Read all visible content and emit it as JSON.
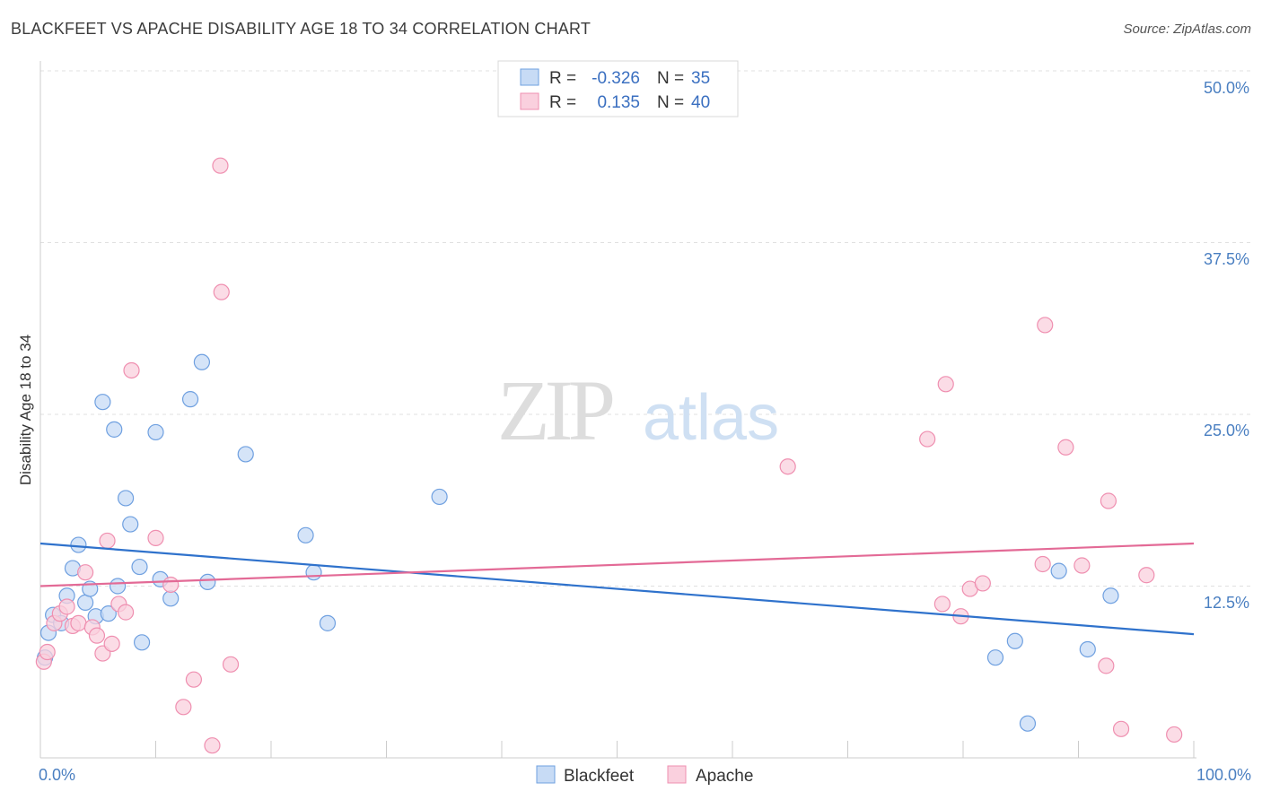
{
  "title": "BLACKFEET VS APACHE DISABILITY AGE 18 TO 34 CORRELATION CHART",
  "source": "Source: ZipAtlas.com",
  "watermark": {
    "zip": "ZIP",
    "atlas": "atlas"
  },
  "colors": {
    "blackfeet": "#6fa0e0",
    "blackfeet_fill": "#c7dbf5",
    "blackfeet_line": "#2f72cc",
    "apache": "#ef8fb0",
    "apache_fill": "#fad0de",
    "apache_line": "#e36a96",
    "tick_text": "#4a7fc1",
    "grid": "#e0e0e0"
  },
  "legend": {
    "rows": [
      {
        "r_label": "R =",
        "r_value": "-0.326",
        "n_label": "N =",
        "n_value": "35"
      },
      {
        "r_label": "R =",
        "r_value": "0.135",
        "n_label": "N =",
        "n_value": "40"
      }
    ]
  },
  "bottom_legend": [
    "Blackfeet",
    "Apache"
  ],
  "chart_data": {
    "type": "scatter",
    "title": "BLACKFEET VS APACHE DISABILITY AGE 18 TO 34 CORRELATION CHART",
    "xlabel": "",
    "ylabel": "Disability Age 18 to 34",
    "xlim": [
      0,
      100
    ],
    "ylim": [
      0,
      50
    ],
    "x_tick_labels": [
      "0.0%",
      "100.0%"
    ],
    "y_ticks": [
      12.5,
      25.0,
      37.5,
      50.0
    ],
    "y_tick_labels": [
      "12.5%",
      "25.0%",
      "37.5%",
      "50.0%"
    ],
    "grid": true,
    "series": [
      {
        "name": "Blackfeet",
        "r": -0.326,
        "n": 35,
        "trend": {
          "x": [
            0,
            100
          ],
          "y": [
            15.6,
            9.0
          ]
        },
        "points": [
          {
            "x": 0.4,
            "y": 7.3
          },
          {
            "x": 0.7,
            "y": 9.1
          },
          {
            "x": 1.1,
            "y": 10.4
          },
          {
            "x": 1.8,
            "y": 9.8
          },
          {
            "x": 2.3,
            "y": 11.8
          },
          {
            "x": 2.8,
            "y": 13.8
          },
          {
            "x": 3.3,
            "y": 15.5
          },
          {
            "x": 3.9,
            "y": 11.3
          },
          {
            "x": 4.3,
            "y": 12.3
          },
          {
            "x": 4.8,
            "y": 10.3
          },
          {
            "x": 5.4,
            "y": 25.9
          },
          {
            "x": 5.9,
            "y": 10.5
          },
          {
            "x": 6.4,
            "y": 23.9
          },
          {
            "x": 6.7,
            "y": 12.5
          },
          {
            "x": 7.4,
            "y": 18.9
          },
          {
            "x": 7.8,
            "y": 17.0
          },
          {
            "x": 8.6,
            "y": 13.9
          },
          {
            "x": 8.8,
            "y": 8.4
          },
          {
            "x": 10.0,
            "y": 23.7
          },
          {
            "x": 10.4,
            "y": 13.0
          },
          {
            "x": 11.3,
            "y": 11.6
          },
          {
            "x": 13.0,
            "y": 26.1
          },
          {
            "x": 14.0,
            "y": 28.8
          },
          {
            "x": 14.5,
            "y": 12.8
          },
          {
            "x": 17.8,
            "y": 22.1
          },
          {
            "x": 23.0,
            "y": 16.2
          },
          {
            "x": 23.7,
            "y": 13.5
          },
          {
            "x": 24.9,
            "y": 9.8
          },
          {
            "x": 34.6,
            "y": 19.0
          },
          {
            "x": 82.8,
            "y": 7.3
          },
          {
            "x": 84.5,
            "y": 8.5
          },
          {
            "x": 85.6,
            "y": 2.5
          },
          {
            "x": 88.3,
            "y": 13.6
          },
          {
            "x": 90.8,
            "y": 7.9
          },
          {
            "x": 92.8,
            "y": 11.8
          }
        ]
      },
      {
        "name": "Apache",
        "r": 0.135,
        "n": 40,
        "trend": {
          "x": [
            0,
            100
          ],
          "y": [
            12.5,
            15.6
          ]
        },
        "points": [
          {
            "x": 0.3,
            "y": 7.0
          },
          {
            "x": 0.6,
            "y": 7.7
          },
          {
            "x": 1.2,
            "y": 9.8
          },
          {
            "x": 1.7,
            "y": 10.5
          },
          {
            "x": 2.3,
            "y": 11.0
          },
          {
            "x": 2.8,
            "y": 9.6
          },
          {
            "x": 3.3,
            "y": 9.8
          },
          {
            "x": 3.9,
            "y": 13.5
          },
          {
            "x": 4.5,
            "y": 9.5
          },
          {
            "x": 4.9,
            "y": 8.9
          },
          {
            "x": 5.4,
            "y": 7.6
          },
          {
            "x": 5.8,
            "y": 15.8
          },
          {
            "x": 6.2,
            "y": 8.3
          },
          {
            "x": 6.8,
            "y": 11.2
          },
          {
            "x": 7.4,
            "y": 10.6
          },
          {
            "x": 7.9,
            "y": 28.2
          },
          {
            "x": 10.0,
            "y": 16.0
          },
          {
            "x": 11.3,
            "y": 12.6
          },
          {
            "x": 12.4,
            "y": 3.7
          },
          {
            "x": 13.3,
            "y": 5.7
          },
          {
            "x": 14.9,
            "y": 0.9
          },
          {
            "x": 15.6,
            "y": 43.1
          },
          {
            "x": 15.7,
            "y": 33.9
          },
          {
            "x": 16.5,
            "y": 6.8
          },
          {
            "x": 64.8,
            "y": 21.2
          },
          {
            "x": 76.9,
            "y": 23.2
          },
          {
            "x": 78.5,
            "y": 27.2
          },
          {
            "x": 78.2,
            "y": 11.2
          },
          {
            "x": 79.8,
            "y": 10.3
          },
          {
            "x": 80.6,
            "y": 12.3
          },
          {
            "x": 81.7,
            "y": 12.7
          },
          {
            "x": 87.1,
            "y": 31.5
          },
          {
            "x": 86.9,
            "y": 14.1
          },
          {
            "x": 88.9,
            "y": 22.6
          },
          {
            "x": 90.3,
            "y": 14.0
          },
          {
            "x": 92.6,
            "y": 18.7
          },
          {
            "x": 92.4,
            "y": 6.7
          },
          {
            "x": 93.7,
            "y": 2.1
          },
          {
            "x": 95.9,
            "y": 13.3
          },
          {
            "x": 98.3,
            "y": 1.7
          }
        ]
      }
    ]
  }
}
